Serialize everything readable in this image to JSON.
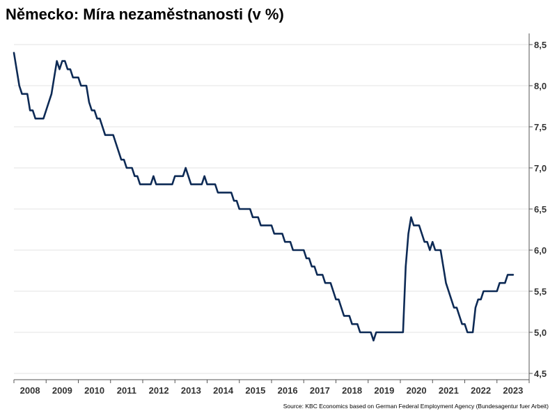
{
  "title": "Německo: Míra nezaměstnanosti (v %)",
  "source": "Source: KBC Economics based on German Federal Employment Agency (Bundesagentur fuer Arbeit)",
  "colors": {
    "line": "#0d2a55",
    "grid": "#e3e3e3",
    "axis": "#555555",
    "text": "#333333"
  },
  "chart_data": {
    "type": "line",
    "title": "Německo: Míra nezaměstnanosti (v %)",
    "xlabel": "",
    "ylabel": "",
    "x_range": [
      "2008-01",
      "2023-12"
    ],
    "ylim": [
      4.5,
      8.5
    ],
    "y_axis_position": "right",
    "grid": true,
    "legend": "none",
    "x_tick_labels": [
      "2008",
      "2009",
      "2010",
      "2011",
      "2012",
      "2013",
      "2014",
      "2015",
      "2016",
      "2017",
      "2018",
      "2019",
      "2020",
      "2021",
      "2022",
      "2023"
    ],
    "y_tick_values": [
      4.5,
      5.0,
      5.5,
      6.0,
      6.5,
      7.0,
      7.5,
      8.0,
      8.5
    ],
    "y_tick_labels": [
      "4,5",
      "5,0",
      "5,5",
      "6,0",
      "6,5",
      "7,0",
      "7,5",
      "8,0",
      "8,5"
    ],
    "series": [
      {
        "points": [
          [
            "2008-01",
            8.4
          ],
          [
            "2008-02",
            8.2
          ],
          [
            "2008-03",
            8.0
          ],
          [
            "2008-04",
            7.9
          ],
          [
            "2008-05",
            7.9
          ],
          [
            "2008-06",
            7.9
          ],
          [
            "2008-07",
            7.7
          ],
          [
            "2008-08",
            7.7
          ],
          [
            "2008-09",
            7.6
          ],
          [
            "2008-10",
            7.6
          ],
          [
            "2008-11",
            7.6
          ],
          [
            "2008-12",
            7.6
          ],
          [
            "2009-01",
            7.7
          ],
          [
            "2009-02",
            7.8
          ],
          [
            "2009-03",
            7.9
          ],
          [
            "2009-04",
            8.1
          ],
          [
            "2009-05",
            8.3
          ],
          [
            "2009-06",
            8.2
          ],
          [
            "2009-07",
            8.3
          ],
          [
            "2009-08",
            8.3
          ],
          [
            "2009-09",
            8.2
          ],
          [
            "2009-10",
            8.2
          ],
          [
            "2009-11",
            8.1
          ],
          [
            "2009-12",
            8.1
          ],
          [
            "2010-01",
            8.1
          ],
          [
            "2010-02",
            8.0
          ],
          [
            "2010-03",
            8.0
          ],
          [
            "2010-04",
            8.0
          ],
          [
            "2010-05",
            7.8
          ],
          [
            "2010-06",
            7.7
          ],
          [
            "2010-07",
            7.7
          ],
          [
            "2010-08",
            7.6
          ],
          [
            "2010-09",
            7.6
          ],
          [
            "2010-10",
            7.5
          ],
          [
            "2010-11",
            7.4
          ],
          [
            "2010-12",
            7.4
          ],
          [
            "2011-01",
            7.4
          ],
          [
            "2011-02",
            7.4
          ],
          [
            "2011-03",
            7.3
          ],
          [
            "2011-04",
            7.2
          ],
          [
            "2011-05",
            7.1
          ],
          [
            "2011-06",
            7.1
          ],
          [
            "2011-07",
            7.0
          ],
          [
            "2011-08",
            7.0
          ],
          [
            "2011-09",
            7.0
          ],
          [
            "2011-10",
            6.9
          ],
          [
            "2011-11",
            6.9
          ],
          [
            "2011-12",
            6.8
          ],
          [
            "2012-01",
            6.8
          ],
          [
            "2012-02",
            6.8
          ],
          [
            "2012-03",
            6.8
          ],
          [
            "2012-04",
            6.8
          ],
          [
            "2012-05",
            6.9
          ],
          [
            "2012-06",
            6.8
          ],
          [
            "2012-07",
            6.8
          ],
          [
            "2012-08",
            6.8
          ],
          [
            "2012-09",
            6.8
          ],
          [
            "2012-10",
            6.8
          ],
          [
            "2012-11",
            6.8
          ],
          [
            "2012-12",
            6.8
          ],
          [
            "2013-01",
            6.9
          ],
          [
            "2013-02",
            6.9
          ],
          [
            "2013-03",
            6.9
          ],
          [
            "2013-04",
            6.9
          ],
          [
            "2013-05",
            7.0
          ],
          [
            "2013-06",
            6.9
          ],
          [
            "2013-07",
            6.8
          ],
          [
            "2013-08",
            6.8
          ],
          [
            "2013-09",
            6.8
          ],
          [
            "2013-10",
            6.8
          ],
          [
            "2013-11",
            6.8
          ],
          [
            "2013-12",
            6.9
          ],
          [
            "2014-01",
            6.8
          ],
          [
            "2014-02",
            6.8
          ],
          [
            "2014-03",
            6.8
          ],
          [
            "2014-04",
            6.8
          ],
          [
            "2014-05",
            6.7
          ],
          [
            "2014-06",
            6.7
          ],
          [
            "2014-07",
            6.7
          ],
          [
            "2014-08",
            6.7
          ],
          [
            "2014-09",
            6.7
          ],
          [
            "2014-10",
            6.7
          ],
          [
            "2014-11",
            6.6
          ],
          [
            "2014-12",
            6.6
          ],
          [
            "2015-01",
            6.5
          ],
          [
            "2015-02",
            6.5
          ],
          [
            "2015-03",
            6.5
          ],
          [
            "2015-04",
            6.5
          ],
          [
            "2015-05",
            6.5
          ],
          [
            "2015-06",
            6.4
          ],
          [
            "2015-07",
            6.4
          ],
          [
            "2015-08",
            6.4
          ],
          [
            "2015-09",
            6.3
          ],
          [
            "2015-10",
            6.3
          ],
          [
            "2015-11",
            6.3
          ],
          [
            "2015-12",
            6.3
          ],
          [
            "2016-01",
            6.3
          ],
          [
            "2016-02",
            6.2
          ],
          [
            "2016-03",
            6.2
          ],
          [
            "2016-04",
            6.2
          ],
          [
            "2016-05",
            6.2
          ],
          [
            "2016-06",
            6.1
          ],
          [
            "2016-07",
            6.1
          ],
          [
            "2016-08",
            6.1
          ],
          [
            "2016-09",
            6.0
          ],
          [
            "2016-10",
            6.0
          ],
          [
            "2016-11",
            6.0
          ],
          [
            "2016-12",
            6.0
          ],
          [
            "2017-01",
            6.0
          ],
          [
            "2017-02",
            5.9
          ],
          [
            "2017-03",
            5.9
          ],
          [
            "2017-04",
            5.8
          ],
          [
            "2017-05",
            5.8
          ],
          [
            "2017-06",
            5.7
          ],
          [
            "2017-07",
            5.7
          ],
          [
            "2017-08",
            5.7
          ],
          [
            "2017-09",
            5.6
          ],
          [
            "2017-10",
            5.6
          ],
          [
            "2017-11",
            5.6
          ],
          [
            "2017-12",
            5.5
          ],
          [
            "2018-01",
            5.4
          ],
          [
            "2018-02",
            5.4
          ],
          [
            "2018-03",
            5.3
          ],
          [
            "2018-04",
            5.2
          ],
          [
            "2018-05",
            5.2
          ],
          [
            "2018-06",
            5.2
          ],
          [
            "2018-07",
            5.1
          ],
          [
            "2018-08",
            5.1
          ],
          [
            "2018-09",
            5.1
          ],
          [
            "2018-10",
            5.0
          ],
          [
            "2018-11",
            5.0
          ],
          [
            "2018-12",
            5.0
          ],
          [
            "2019-01",
            5.0
          ],
          [
            "2019-02",
            5.0
          ],
          [
            "2019-03",
            4.9
          ],
          [
            "2019-04",
            5.0
          ],
          [
            "2019-05",
            5.0
          ],
          [
            "2019-06",
            5.0
          ],
          [
            "2019-07",
            5.0
          ],
          [
            "2019-08",
            5.0
          ],
          [
            "2019-09",
            5.0
          ],
          [
            "2019-10",
            5.0
          ],
          [
            "2019-11",
            5.0
          ],
          [
            "2019-12",
            5.0
          ],
          [
            "2020-01",
            5.0
          ],
          [
            "2020-02",
            5.0
          ],
          [
            "2020-03",
            5.8
          ],
          [
            "2020-04",
            6.2
          ],
          [
            "2020-05",
            6.4
          ],
          [
            "2020-06",
            6.3
          ],
          [
            "2020-07",
            6.3
          ],
          [
            "2020-08",
            6.3
          ],
          [
            "2020-09",
            6.2
          ],
          [
            "2020-10",
            6.1
          ],
          [
            "2020-11",
            6.1
          ],
          [
            "2020-12",
            6.0
          ],
          [
            "2021-01",
            6.1
          ],
          [
            "2021-02",
            6.0
          ],
          [
            "2021-03",
            6.0
          ],
          [
            "2021-04",
            6.0
          ],
          [
            "2021-05",
            5.8
          ],
          [
            "2021-06",
            5.6
          ],
          [
            "2021-07",
            5.5
          ],
          [
            "2021-08",
            5.4
          ],
          [
            "2021-09",
            5.3
          ],
          [
            "2021-10",
            5.3
          ],
          [
            "2021-11",
            5.2
          ],
          [
            "2021-12",
            5.1
          ],
          [
            "2022-01",
            5.1
          ],
          [
            "2022-02",
            5.0
          ],
          [
            "2022-03",
            5.0
          ],
          [
            "2022-04",
            5.0
          ],
          [
            "2022-05",
            5.3
          ],
          [
            "2022-06",
            5.4
          ],
          [
            "2022-07",
            5.4
          ],
          [
            "2022-08",
            5.5
          ],
          [
            "2022-09",
            5.5
          ],
          [
            "2022-10",
            5.5
          ],
          [
            "2022-11",
            5.5
          ],
          [
            "2022-12",
            5.5
          ],
          [
            "2023-01",
            5.5
          ],
          [
            "2023-02",
            5.6
          ],
          [
            "2023-03",
            5.6
          ],
          [
            "2023-04",
            5.6
          ],
          [
            "2023-05",
            5.7
          ],
          [
            "2023-06",
            5.7
          ],
          [
            "2023-07",
            5.7
          ]
        ]
      }
    ]
  }
}
